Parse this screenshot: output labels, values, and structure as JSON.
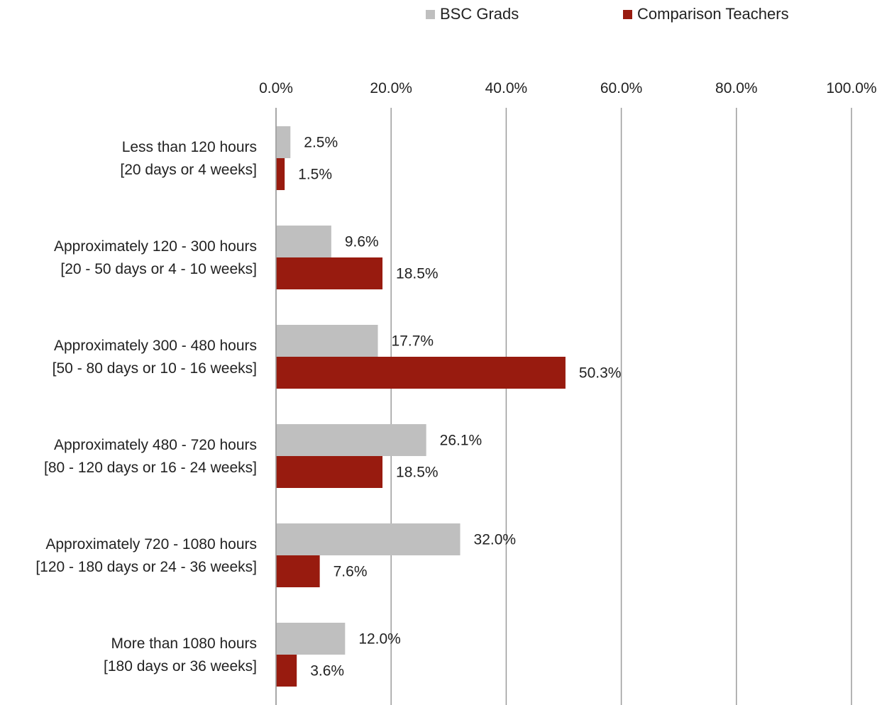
{
  "legend": {
    "bsc_label": "BSC Grads",
    "comparison_label": "Comparison Teachers"
  },
  "colors": {
    "bsc": "#bfbfbf",
    "comparison": "#981b0f",
    "grid": "#9b9b9b"
  },
  "chart_data": {
    "type": "bar",
    "orientation": "horizontal",
    "xlim": [
      0,
      100
    ],
    "x_ticks": [
      "0.0%",
      "20.0%",
      "40.0%",
      "60.0%",
      "80.0%",
      "100.0%"
    ],
    "axis_position": "top",
    "grid": true,
    "legend_position": "top-right",
    "categories": [
      [
        "Less than 120 hours",
        "[20 days or 4 weeks]"
      ],
      [
        "Approximately 120 - 300 hours",
        "[20 - 50 days or 4 - 10 weeks]"
      ],
      [
        "Approximately 300 - 480 hours",
        "[50 - 80 days or 10 - 16 weeks]"
      ],
      [
        "Approximately 480 - 720 hours",
        "[80 - 120 days or 16 - 24 weeks]"
      ],
      [
        "Approximately 720 - 1080 hours",
        "[120 - 180 days or 24 - 36 weeks]"
      ],
      [
        "More than 1080 hours",
        "[180 days or 36 weeks]"
      ]
    ],
    "series": [
      {
        "name": "BSC Grads",
        "values": [
          2.5,
          9.6,
          17.7,
          26.1,
          32.0,
          12.0
        ],
        "labels": [
          "2.5%",
          "9.6%",
          "17.7%",
          "26.1%",
          "32.0%",
          "12.0%"
        ]
      },
      {
        "name": "Comparison Teachers",
        "values": [
          1.5,
          18.5,
          50.3,
          18.5,
          7.6,
          3.6
        ],
        "labels": [
          "1.5%",
          "18.5%",
          "50.3%",
          "18.5%",
          "7.6%",
          "3.6%"
        ]
      }
    ]
  }
}
